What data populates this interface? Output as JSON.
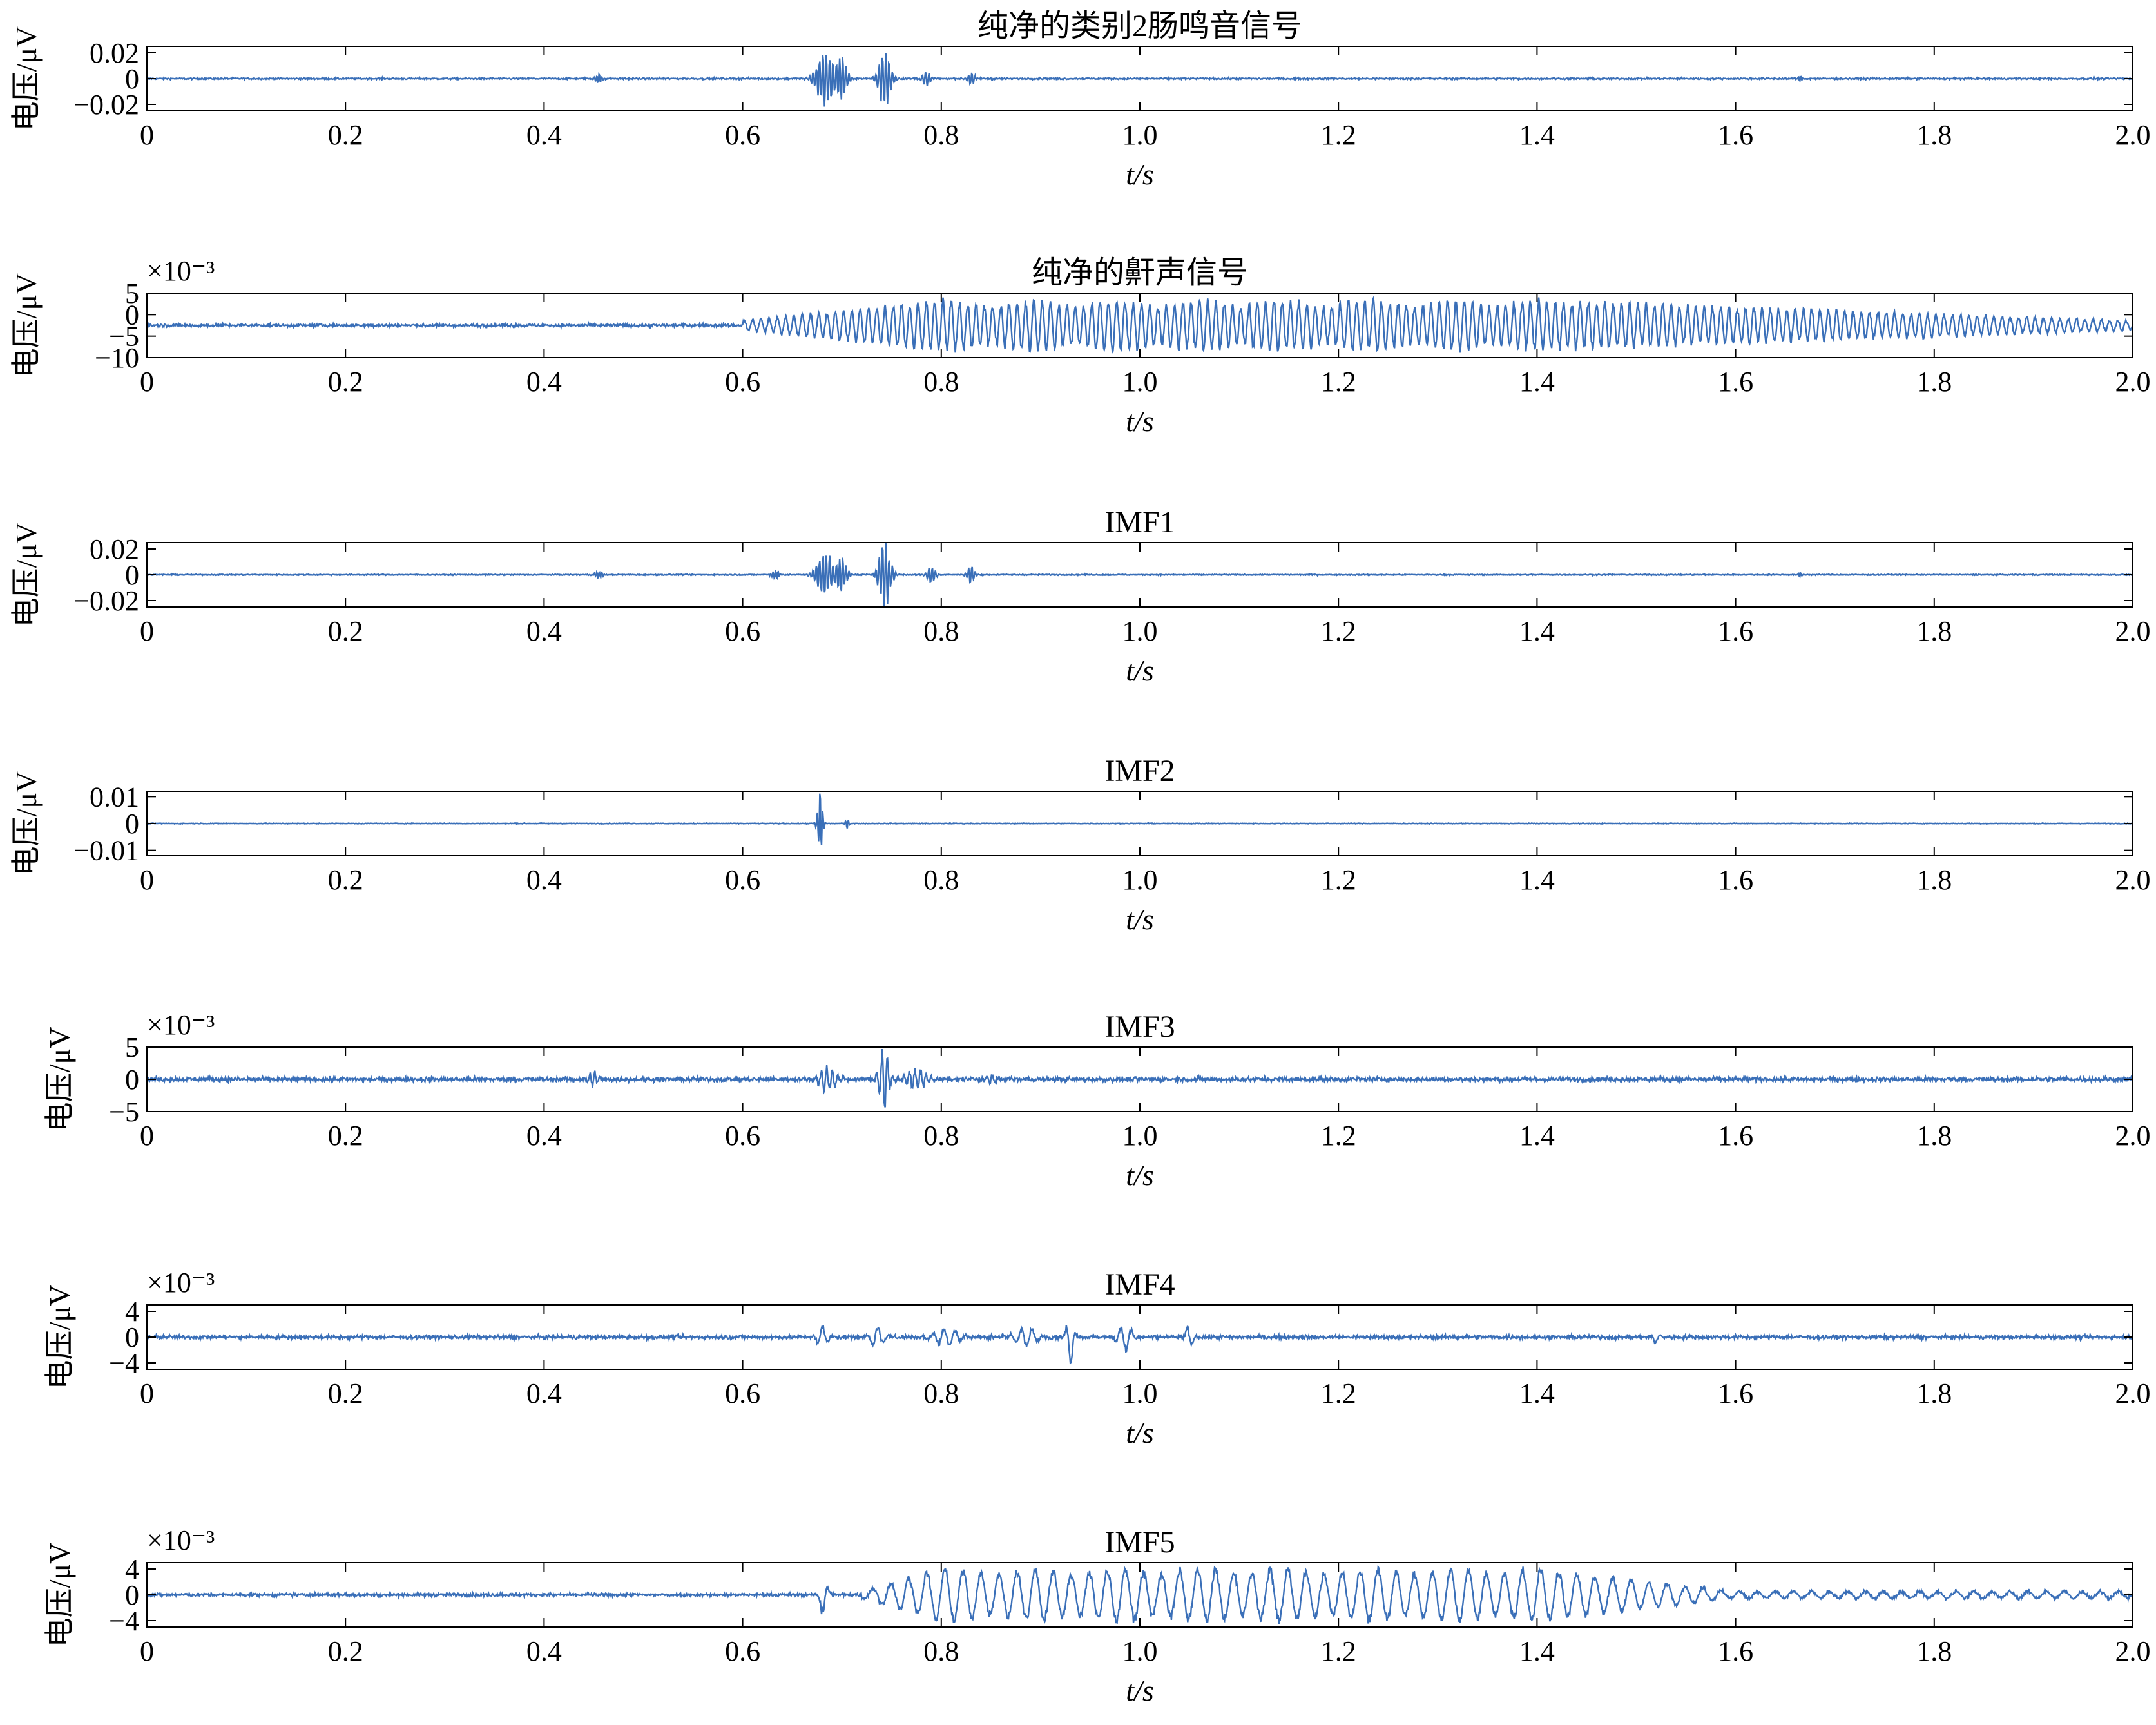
{
  "figure": {
    "xlabel": "t/s",
    "ylabel": "电压/μV",
    "series_color": "#3a6fb8"
  },
  "chart_data": [
    {
      "type": "line",
      "title": "纯净的类别2肠鸣音信号",
      "xlabel": "t/s",
      "ylabel": "电压/μV",
      "xlim": [
        0,
        2.0
      ],
      "ylim": [
        -0.025,
        0.025
      ],
      "xticks": [
        "0",
        "0.2",
        "0.4",
        "0.6",
        "0.8",
        "1.0",
        "1.2",
        "1.4",
        "1.6",
        "1.8",
        "2.0"
      ],
      "yticks": [
        0.02,
        0,
        -0.02
      ],
      "ytick_labels": [
        "0.02",
        "0",
        "−0.02"
      ],
      "exponent": "",
      "baseline": 0,
      "noise": 0.0006,
      "bursts": [
        {
          "t": 0.455,
          "w": 0.004,
          "a": 0.004,
          "f": 400
        },
        {
          "t": 0.683,
          "w": 0.01,
          "a": 0.021,
          "f": 300
        },
        {
          "t": 0.7,
          "w": 0.006,
          "a": 0.015,
          "f": 320
        },
        {
          "t": 0.743,
          "w": 0.007,
          "a": 0.022,
          "f": 300
        },
        {
          "t": 0.785,
          "w": 0.005,
          "a": 0.005,
          "f": 300
        },
        {
          "t": 0.83,
          "w": 0.004,
          "a": 0.005,
          "f": 300
        },
        {
          "t": 1.665,
          "w": 0.002,
          "a": 0.003,
          "f": 400
        }
      ],
      "grid": false
    },
    {
      "type": "line",
      "title": "纯净的鼾声信号",
      "xlabel": "t/s",
      "ylabel": "电压/μV",
      "xlim": [
        0,
        2.0
      ],
      "ylim": [
        -10,
        5
      ],
      "xticks": [
        "0",
        "0.2",
        "0.4",
        "0.6",
        "0.8",
        "1.0",
        "1.2",
        "1.4",
        "1.6",
        "1.8",
        "2.0"
      ],
      "yticks": [
        5,
        0,
        -5,
        -10
      ],
      "ytick_labels": [
        "5",
        "0",
        "−5",
        "−10"
      ],
      "exponent": "×10⁻³",
      "baseline": -2.5,
      "noise": 0.35,
      "envelope": {
        "start": 0.6,
        "rise_end": 0.8,
        "fall_start": 1.4,
        "end": 2.0,
        "peak": 6.5,
        "tail": 1.2,
        "f": 120
      },
      "grid": false
    },
    {
      "type": "line",
      "title": "IMF1",
      "xlabel": "t/s",
      "ylabel": "电压/μV",
      "xlim": [
        0,
        2.0
      ],
      "ylim": [
        -0.025,
        0.025
      ],
      "xticks": [
        "0",
        "0.2",
        "0.4",
        "0.6",
        "0.8",
        "1.0",
        "1.2",
        "1.4",
        "1.6",
        "1.8",
        "2.0"
      ],
      "yticks": [
        0.02,
        0,
        -0.02
      ],
      "ytick_labels": [
        "0.02",
        "0",
        "−0.02"
      ],
      "exponent": "",
      "baseline": 0,
      "noise": 0.0004,
      "bursts": [
        {
          "t": 0.455,
          "w": 0.004,
          "a": 0.003,
          "f": 400
        },
        {
          "t": 0.633,
          "w": 0.004,
          "a": 0.004,
          "f": 400
        },
        {
          "t": 0.683,
          "w": 0.01,
          "a": 0.016,
          "f": 300
        },
        {
          "t": 0.7,
          "w": 0.006,
          "a": 0.012,
          "f": 320
        },
        {
          "t": 0.743,
          "w": 0.007,
          "a": 0.023,
          "f": 300
        },
        {
          "t": 0.79,
          "w": 0.005,
          "a": 0.006,
          "f": 300
        },
        {
          "t": 0.83,
          "w": 0.004,
          "a": 0.007,
          "f": 300
        },
        {
          "t": 1.665,
          "w": 0.002,
          "a": 0.002,
          "f": 400
        }
      ],
      "grid": false
    },
    {
      "type": "line",
      "title": "IMF2",
      "xlabel": "t/s",
      "ylabel": "电压/μV",
      "xlim": [
        0,
        2.0
      ],
      "ylim": [
        -0.012,
        0.012
      ],
      "xticks": [
        "0",
        "0.2",
        "0.4",
        "0.6",
        "0.8",
        "1.0",
        "1.2",
        "1.4",
        "1.6",
        "1.8",
        "2.0"
      ],
      "yticks": [
        0.01,
        0,
        -0.01
      ],
      "ytick_labels": [
        "0.01",
        "0",
        "−0.01"
      ],
      "exponent": "",
      "baseline": 0,
      "noise": 0.00012,
      "bursts": [
        {
          "t": 0.678,
          "w": 0.003,
          "a": 0.012,
          "f": 350
        },
        {
          "t": 0.705,
          "w": 0.002,
          "a": 0.002,
          "f": 350
        }
      ],
      "grid": false
    },
    {
      "type": "line",
      "title": "IMF3",
      "xlabel": "t/s",
      "ylabel": "电压/μV",
      "xlim": [
        0,
        2.0
      ],
      "ylim": [
        -5,
        5
      ],
      "xticks": [
        "0",
        "0.2",
        "0.4",
        "0.6",
        "0.8",
        "1.0",
        "1.2",
        "1.4",
        "1.6",
        "1.8",
        "2.0"
      ],
      "yticks": [
        5,
        0,
        -5
      ],
      "ytick_labels": [
        "5",
        "0",
        "−5"
      ],
      "exponent": "×10⁻³",
      "baseline": 0,
      "noise": 0.35,
      "bursts": [
        {
          "t": 0.45,
          "w": 0.006,
          "a": 1.0,
          "f": 200
        },
        {
          "t": 0.685,
          "w": 0.01,
          "a": 2.0,
          "f": 180
        },
        {
          "t": 0.742,
          "w": 0.006,
          "a": 4.5,
          "f": 180
        },
        {
          "t": 0.775,
          "w": 0.012,
          "a": 1.6,
          "f": 180
        },
        {
          "t": 0.85,
          "w": 0.005,
          "a": 0.8,
          "f": 180
        }
      ],
      "grid": false
    },
    {
      "type": "line",
      "title": "IMF4",
      "xlabel": "t/s",
      "ylabel": "电压/μV",
      "xlim": [
        0,
        2.0
      ],
      "ylim": [
        -5,
        5
      ],
      "xticks": [
        "0",
        "0.2",
        "0.4",
        "0.6",
        "0.8",
        "1.0",
        "1.2",
        "1.4",
        "1.6",
        "1.8",
        "2.0"
      ],
      "yticks": [
        4,
        0,
        -4
      ],
      "ytick_labels": [
        "4",
        "0",
        "−4"
      ],
      "exponent": "×10⁻³",
      "baseline": 0,
      "noise": 0.3,
      "bursts": [
        {
          "t": 0.68,
          "w": 0.006,
          "a": 1.8,
          "f": 90
        },
        {
          "t": 0.735,
          "w": 0.008,
          "a": 1.6,
          "f": 90
        },
        {
          "t": 0.805,
          "w": 0.015,
          "a": 1.4,
          "f": 90
        },
        {
          "t": 0.885,
          "w": 0.012,
          "a": 1.6,
          "f": 90
        },
        {
          "t": 0.93,
          "w": 0.004,
          "a": 4.8,
          "f": 90
        },
        {
          "t": 0.985,
          "w": 0.008,
          "a": 2.0,
          "f": 90
        },
        {
          "t": 1.05,
          "w": 0.004,
          "a": 1.8,
          "f": 90
        },
        {
          "t": 1.52,
          "w": 0.004,
          "a": 0.8,
          "f": 90
        }
      ],
      "grid": false
    },
    {
      "type": "line",
      "title": "IMF5",
      "xlabel": "t/s",
      "ylabel": "电压/μV",
      "xlim": [
        0,
        2.0
      ],
      "ylim": [
        -5,
        5
      ],
      "xticks": [
        "0",
        "0.2",
        "0.4",
        "0.6",
        "0.8",
        "1.0",
        "1.2",
        "1.4",
        "1.6",
        "1.8",
        "2.0"
      ],
      "yticks": [
        4,
        0,
        -4
      ],
      "ytick_labels": [
        "4",
        "0",
        "−4"
      ],
      "exponent": "×10⁻³",
      "baseline": 0,
      "noise": 0.25,
      "envelope": {
        "start": 0.72,
        "rise_end": 0.8,
        "fall_start": 1.4,
        "end": 1.6,
        "peak": 4.6,
        "tail": 0.6,
        "f": 55
      },
      "bursts": [
        {
          "t": 0.682,
          "w": 0.004,
          "a": 3.8,
          "f": 60
        }
      ],
      "grid": false
    }
  ]
}
